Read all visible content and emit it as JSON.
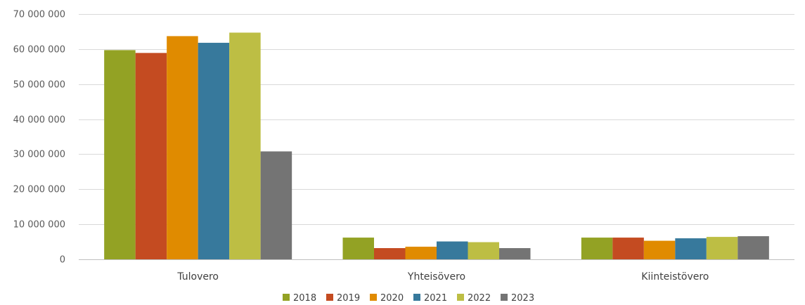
{
  "chart_data": {
    "type": "bar",
    "title": "",
    "xlabel": "",
    "ylabel": "",
    "categories": [
      "Tulovero",
      "Yhteisövero",
      "Kiinteistövero"
    ],
    "ylim": [
      0,
      70000000
    ],
    "yticks": [
      0,
      10000000,
      20000000,
      30000000,
      40000000,
      50000000,
      60000000,
      70000000
    ],
    "ytick_labels": [
      "0",
      "10 000 000",
      "20 000 000",
      "30 000 000",
      "40 000 000",
      "50 000 000",
      "60 000 000",
      "70 000 000"
    ],
    "grid": true,
    "legend_position": "bottom",
    "series": [
      {
        "name": "2018",
        "color": "#93A224",
        "values": [
          59700000,
          6200000,
          6200000
        ]
      },
      {
        "name": "2019",
        "color": "#C44B21",
        "values": [
          58900000,
          3200000,
          6200000
        ]
      },
      {
        "name": "2020",
        "color": "#E08B00",
        "values": [
          63700000,
          3600000,
          5300000
        ]
      },
      {
        "name": "2021",
        "color": "#37799C",
        "values": [
          61800000,
          5100000,
          6000000
        ]
      },
      {
        "name": "2022",
        "color": "#BDBE44",
        "values": [
          64700000,
          4900000,
          6400000
        ]
      },
      {
        "name": "2023",
        "color": "#747474",
        "values": [
          30800000,
          3200000,
          6600000
        ]
      }
    ]
  }
}
